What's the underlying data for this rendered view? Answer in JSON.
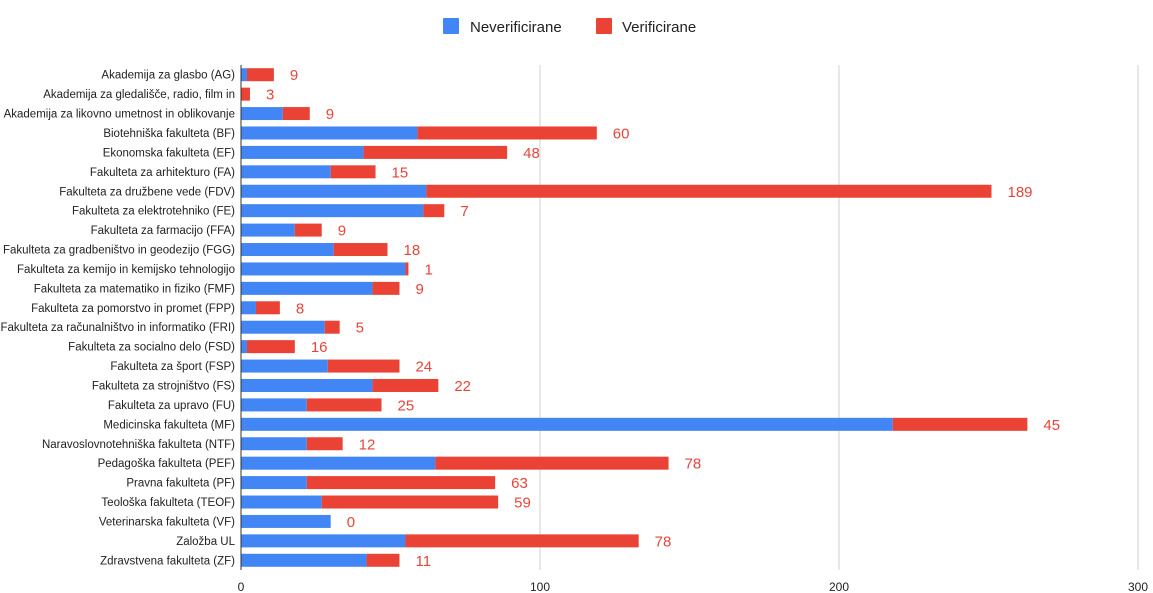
{
  "chart_data": {
    "type": "bar",
    "orientation": "horizontal",
    "stacked": true,
    "legend_position": "top",
    "grid": true,
    "xlim": [
      0,
      300
    ],
    "x_ticks": [
      "0",
      "100",
      "200",
      "300"
    ],
    "categories": [
      "Akademija za glasbo (AG)",
      "Akademija za gledališče, radio, film in",
      "Akademija za likovno umetnost in oblikovanje",
      "Biotehniška fakulteta (BF)",
      "Ekonomska fakulteta (EF)",
      "Fakulteta za arhitekturo (FA)",
      "Fakulteta za družbene vede (FDV)",
      "Fakulteta za elektrotehniko (FE)",
      "Fakulteta za farmacijo (FFA)",
      "Fakulteta za gradbeništvo in geodezijo (FGG)",
      "Fakulteta za kemijo in kemijsko tehnologijo",
      "Fakulteta za matematiko in fiziko (FMF)",
      "Fakulteta za pomorstvo in promet (FPP)",
      "Fakulteta za računalništvo in informatiko (FRI)",
      "Fakulteta za socialno delo (FSD)",
      "Fakulteta za šport (FSP)",
      "Fakulteta za strojništvo (FS)",
      "Fakulteta za upravo (FU)",
      "Medicinska fakulteta (MF)",
      "Naravoslovnotehniška fakulteta (NTF)",
      "Pedagoška fakulteta (PEF)",
      "Pravna fakulteta (PF)",
      "Teološka fakulteta (TEOF)",
      "Veterinarska fakulteta (VF)",
      "Založba UL",
      "Zdravstvena fakulteta (ZF)"
    ],
    "series": [
      {
        "name": "Neverificirane",
        "color": "#4285f4",
        "values": [
          2,
          0,
          14,
          59,
          41,
          30,
          62,
          61,
          18,
          31,
          55,
          44,
          5,
          28,
          2,
          29,
          44,
          22,
          218,
          22,
          65,
          22,
          27,
          30,
          55,
          42
        ]
      },
      {
        "name": "Verificirane",
        "color": "#ea4335",
        "values": [
          9,
          3,
          9,
          60,
          48,
          15,
          189,
          7,
          9,
          18,
          1,
          9,
          8,
          5,
          16,
          24,
          22,
          25,
          45,
          12,
          78,
          63,
          59,
          0,
          78,
          11
        ]
      }
    ],
    "data_labels": [
      "9",
      "3",
      "9",
      "60",
      "48",
      "15",
      "189",
      "7",
      "9",
      "18",
      "1",
      "9",
      "8",
      "5",
      "16",
      "24",
      "22",
      "25",
      "45",
      "12",
      "78",
      "63",
      "59",
      "0",
      "78",
      "11"
    ]
  }
}
